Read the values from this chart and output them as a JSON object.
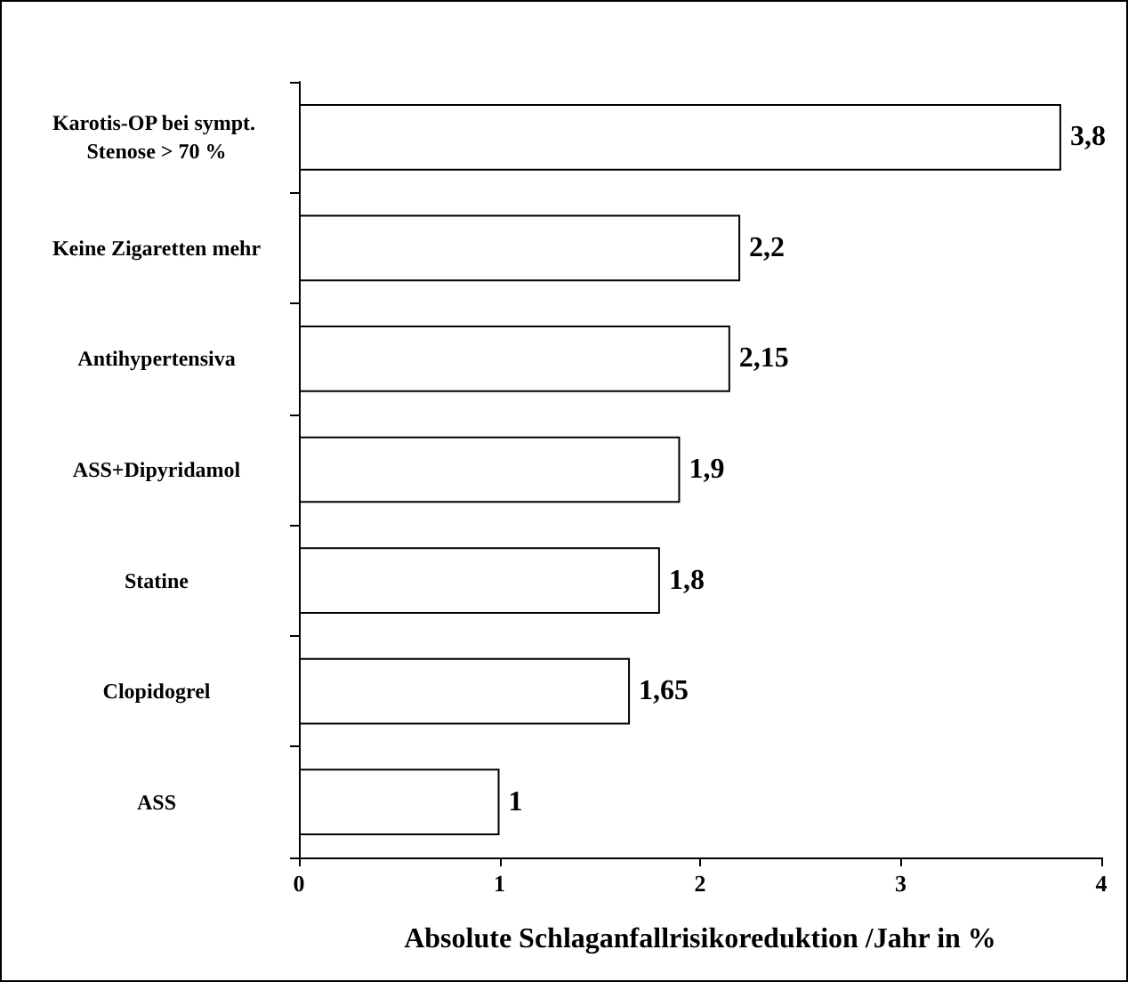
{
  "chart_data": {
    "type": "bar",
    "orientation": "horizontal",
    "xlabel": "Absolute Schlaganfallrisikoreduktion /Jahr in %",
    "categories": [
      "Karotis-OP bei sympt. Stenose > 70 %",
      "Keine Zigaretten mehr",
      "Antihypertensiva",
      "ASS+Dipyridamol",
      "Statine",
      "Clopidogrel",
      "ASS"
    ],
    "values": [
      3.8,
      2.2,
      2.15,
      1.9,
      1.8,
      1.65,
      1
    ],
    "value_labels": [
      "3,8",
      "2,2",
      "2,15",
      "1,9",
      "1,8",
      "1,65",
      "1"
    ],
    "color": "#ffffff",
    "xlim": [
      0,
      4
    ],
    "xticks": [
      0,
      1,
      2,
      3,
      4
    ],
    "grid": false
  }
}
